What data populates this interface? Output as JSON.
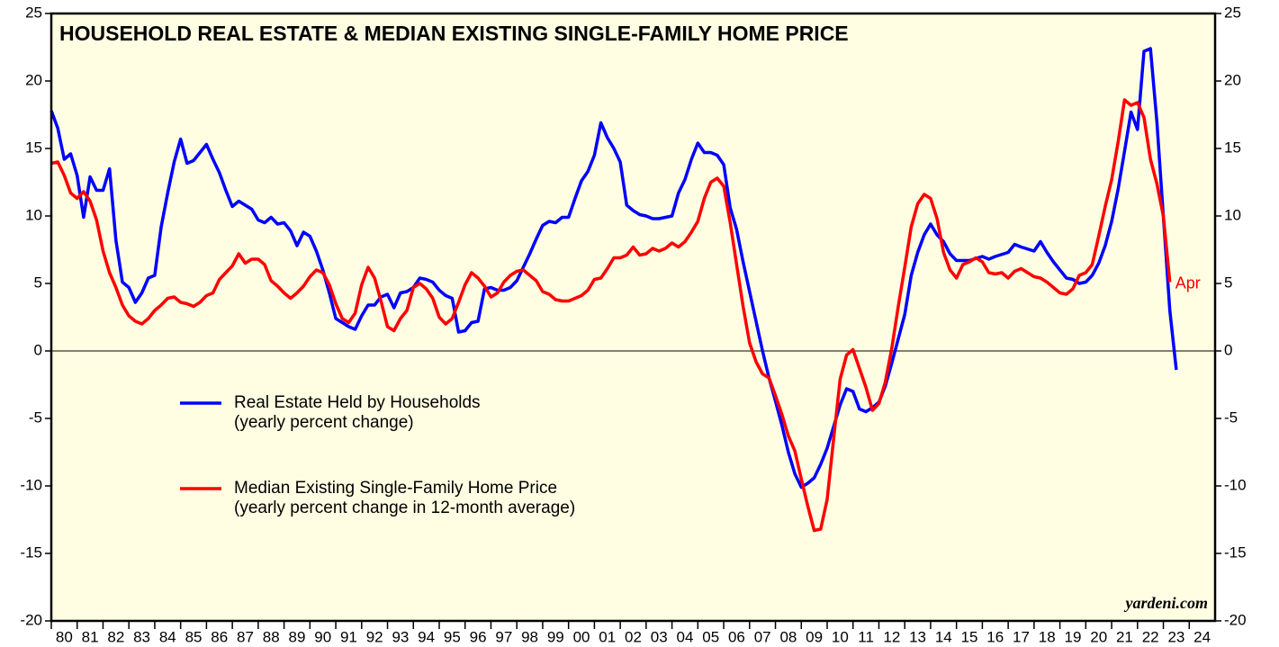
{
  "chart_data": {
    "type": "line",
    "title": "HOUSEHOLD REAL ESTATE & MEDIAN EXISTING SINGLE-FAMILY HOME PRICE",
    "source": "yardeni.com",
    "xlim": [
      1980,
      2025
    ],
    "ylim": [
      -20,
      25
    ],
    "yticks": [
      -20,
      -15,
      -10,
      -5,
      0,
      5,
      10,
      15,
      20,
      25
    ],
    "y2lim": [
      -20,
      25
    ],
    "y2ticks": [
      -20,
      -15,
      -10,
      -5,
      0,
      5,
      10,
      15,
      20,
      25
    ],
    "xticks": [
      {
        "value": 1980,
        "label": "80"
      },
      {
        "value": 1981,
        "label": "81"
      },
      {
        "value": 1982,
        "label": "82"
      },
      {
        "value": 1983,
        "label": "83"
      },
      {
        "value": 1984,
        "label": "84"
      },
      {
        "value": 1985,
        "label": "85"
      },
      {
        "value": 1986,
        "label": "86"
      },
      {
        "value": 1987,
        "label": "87"
      },
      {
        "value": 1988,
        "label": "88"
      },
      {
        "value": 1989,
        "label": "89"
      },
      {
        "value": 1990,
        "label": "90"
      },
      {
        "value": 1991,
        "label": "91"
      },
      {
        "value": 1992,
        "label": "92"
      },
      {
        "value": 1993,
        "label": "93"
      },
      {
        "value": 1994,
        "label": "94"
      },
      {
        "value": 1995,
        "label": "95"
      },
      {
        "value": 1996,
        "label": "96"
      },
      {
        "value": 1997,
        "label": "97"
      },
      {
        "value": 1998,
        "label": "98"
      },
      {
        "value": 1999,
        "label": "99"
      },
      {
        "value": 2000,
        "label": "00"
      },
      {
        "value": 2001,
        "label": "01"
      },
      {
        "value": 2002,
        "label": "02"
      },
      {
        "value": 2003,
        "label": "03"
      },
      {
        "value": 2004,
        "label": "04"
      },
      {
        "value": 2005,
        "label": "05"
      },
      {
        "value": 2006,
        "label": "06"
      },
      {
        "value": 2007,
        "label": "07"
      },
      {
        "value": 2008,
        "label": "08"
      },
      {
        "value": 2009,
        "label": "09"
      },
      {
        "value": 2010,
        "label": "10"
      },
      {
        "value": 2011,
        "label": "11"
      },
      {
        "value": 2012,
        "label": "12"
      },
      {
        "value": 2013,
        "label": "13"
      },
      {
        "value": 2014,
        "label": "14"
      },
      {
        "value": 2015,
        "label": "15"
      },
      {
        "value": 2016,
        "label": "16"
      },
      {
        "value": 2017,
        "label": "17"
      },
      {
        "value": 2018,
        "label": "18"
      },
      {
        "value": 2019,
        "label": "19"
      },
      {
        "value": 2020,
        "label": "20"
      },
      {
        "value": 2021,
        "label": "21"
      },
      {
        "value": 2022,
        "label": "22"
      },
      {
        "value": 2023,
        "label": "23"
      },
      {
        "value": 2024,
        "label": "24"
      }
    ],
    "background": "#fffee3",
    "series": [
      {
        "name": "Real Estate Held by Households",
        "legend_detail": "(yearly percent change)",
        "color": "#0000ff",
        "x": [
          1980,
          1980.25,
          1980.5,
          1980.75,
          1981,
          1981.25,
          1981.5,
          1981.75,
          1982,
          1982.25,
          1982.5,
          1982.75,
          1983,
          1983.25,
          1983.5,
          1983.75,
          1984,
          1984.25,
          1984.5,
          1984.75,
          1985,
          1985.25,
          1985.5,
          1986,
          1986.25,
          1986.5,
          1986.75,
          1987,
          1987.25,
          1987.5,
          1987.75,
          1988,
          1988.25,
          1988.5,
          1988.75,
          1989,
          1989.25,
          1989.5,
          1989.75,
          1990,
          1990.25,
          1990.5,
          1990.75,
          1991,
          1991.25,
          1991.5,
          1991.75,
          1992,
          1992.25,
          1992.5,
          1992.75,
          1993,
          1993.25,
          1993.5,
          1993.75,
          1994,
          1994.25,
          1994.5,
          1994.75,
          1995,
          1995.25,
          1995.5,
          1995.75,
          1996,
          1996.25,
          1996.5,
          1996.75,
          1997,
          1997.25,
          1997.5,
          1997.75,
          1998,
          1998.25,
          1998.5,
          1998.75,
          1999,
          1999.25,
          1999.5,
          1999.75,
          2000,
          2000.25,
          2000.5,
          2000.75,
          2001,
          2001.25,
          2001.5,
          2001.75,
          2002,
          2002.25,
          2002.5,
          2002.75,
          2003,
          2003.25,
          2003.5,
          2003.75,
          2004,
          2004.25,
          2004.5,
          2004.75,
          2005,
          2005.25,
          2005.5,
          2005.75,
          2006,
          2006.25,
          2006.5,
          2006.75,
          2007,
          2007.25,
          2007.5,
          2007.75,
          2008,
          2008.25,
          2008.5,
          2008.75,
          2009,
          2009.25,
          2009.5,
          2009.75,
          2010,
          2010.25,
          2010.5,
          2010.75,
          2011,
          2011.25,
          2011.5,
          2011.75,
          2012,
          2012.25,
          2012.5,
          2012.75,
          2013,
          2013.25,
          2013.5,
          2013.75,
          2014,
          2014.25,
          2014.5,
          2014.75,
          2015,
          2015.5,
          2016,
          2016.25,
          2016.5,
          2017,
          2017.25,
          2017.5,
          2018,
          2018.25,
          2018.5,
          2018.75,
          2019,
          2019.25,
          2019.5,
          2019.75,
          2020,
          2020.25,
          2020.5,
          2020.75,
          2021,
          2021.25,
          2021.5,
          2021.75,
          2022,
          2022.25,
          2022.5,
          2022.75,
          2023,
          2023.25,
          2023.5
        ],
        "values": [
          17.8,
          16.5,
          14.2,
          14.6,
          13,
          9.9,
          12.9,
          11.9,
          11.9,
          13.5,
          8.2,
          5.1,
          4.7,
          3.6,
          4.3,
          5.4,
          5.6,
          9.2,
          11.7,
          14,
          15.7,
          13.9,
          14.1,
          15.3,
          14.2,
          13.2,
          11.9,
          10.7,
          11.1,
          10.8,
          10.5,
          9.7,
          9.5,
          9.9,
          9.4,
          9.5,
          8.9,
          7.8,
          8.8,
          8.5,
          7.4,
          6,
          4.3,
          2.4,
          2.1,
          1.8,
          1.6,
          2.6,
          3.4,
          3.4,
          4,
          4.2,
          3.2,
          4.3,
          4.4,
          4.7,
          5.4,
          5.3,
          5.1,
          4.5,
          4.1,
          3.9,
          1.4,
          1.5,
          2.1,
          2.2,
          4.6,
          4.7,
          4.5,
          4.5,
          4.7,
          5.2,
          6.2,
          7.2,
          8.3,
          9.3,
          9.6,
          9.5,
          9.9,
          9.9,
          11.3,
          12.6,
          13.3,
          14.5,
          16.9,
          15.8,
          15,
          14,
          10.8,
          10.4,
          10.1,
          10,
          9.8,
          9.8,
          9.9,
          10,
          11.7,
          12.7,
          14.2,
          15.4,
          14.7,
          14.7,
          14.5,
          13.8,
          10.6,
          9,
          6.6,
          4.4,
          2.2,
          0,
          -2,
          -3.7,
          -5.5,
          -7.5,
          -9.1,
          -10.1,
          -9.8,
          -9.4,
          -8.4,
          -7.2,
          -5.6,
          -4,
          -2.8,
          -3,
          -4.3,
          -4.5,
          -4.2,
          -3.8,
          -2.6,
          -0.9,
          0.9,
          2.7,
          5.6,
          7.3,
          8.6,
          9.4,
          8.6,
          8.1,
          7.2,
          6.7,
          6.7,
          7.0,
          6.8,
          7.0,
          7.3,
          7.9,
          7.7,
          7.4,
          8.1,
          7.3,
          6.6,
          6,
          5.4,
          5.3,
          5,
          5.1,
          5.6,
          6.5,
          7.8,
          9.6,
          12,
          14.8,
          17.7,
          16.4,
          22.2,
          22.4,
          17,
          10,
          3,
          -1.4
        ]
      },
      {
        "name": "Median Existing Single-Family Home Price",
        "legend_detail": "(yearly percent change in 12-month average)",
        "color": "#ff0000",
        "end_label": "Apr",
        "x": [
          1980,
          1980.25,
          1980.5,
          1980.75,
          1981,
          1981.25,
          1981.5,
          1981.75,
          1982,
          1982.25,
          1982.5,
          1982.75,
          1983,
          1983.25,
          1983.5,
          1983.75,
          1984,
          1984.25,
          1984.5,
          1984.75,
          1985,
          1985.25,
          1985.5,
          1985.75,
          1986,
          1986.25,
          1986.5,
          1986.75,
          1987,
          1987.25,
          1987.5,
          1987.75,
          1988,
          1988.25,
          1988.5,
          1988.75,
          1989,
          1989.25,
          1989.5,
          1989.75,
          1990,
          1990.25,
          1990.5,
          1990.75,
          1991,
          1991.25,
          1991.5,
          1991.75,
          1992,
          1992.25,
          1992.5,
          1992.75,
          1993,
          1993.25,
          1993.5,
          1993.75,
          1994,
          1994.25,
          1994.5,
          1994.75,
          1995,
          1995.25,
          1995.5,
          1995.75,
          1996,
          1996.25,
          1996.5,
          1996.75,
          1997,
          1997.25,
          1997.5,
          1997.75,
          1998,
          1998.25,
          1998.5,
          1998.75,
          1999,
          1999.25,
          1999.5,
          1999.75,
          2000,
          2000.25,
          2000.5,
          2000.75,
          2001,
          2001.25,
          2001.5,
          2001.75,
          2002,
          2002.25,
          2002.5,
          2002.75,
          2003,
          2003.25,
          2003.5,
          2003.75,
          2004,
          2004.25,
          2004.5,
          2004.75,
          2005,
          2005.25,
          2005.5,
          2005.75,
          2006,
          2006.25,
          2006.5,
          2006.75,
          2007,
          2007.25,
          2007.5,
          2007.75,
          2008,
          2008.25,
          2008.5,
          2008.75,
          2009,
          2009.25,
          2009.5,
          2009.75,
          2010,
          2010.25,
          2010.5,
          2010.75,
          2011,
          2011.25,
          2011.5,
          2011.75,
          2012,
          2012.25,
          2012.5,
          2012.75,
          2013,
          2013.25,
          2013.5,
          2013.75,
          2014,
          2014.25,
          2014.5,
          2014.75,
          2015,
          2015.25,
          2015.5,
          2015.75,
          2016,
          2016.25,
          2016.5,
          2016.75,
          2017,
          2017.25,
          2017.5,
          2017.75,
          2018,
          2018.25,
          2018.5,
          2018.75,
          2019,
          2019.25,
          2019.5,
          2019.75,
          2020,
          2020.25,
          2020.5,
          2020.75,
          2021,
          2021.25,
          2021.5,
          2021.75,
          2022,
          2022.25,
          2022.5,
          2022.75,
          2023,
          2023.25
        ],
        "values": [
          13.9,
          14,
          13,
          11.7,
          11.3,
          11.8,
          11.1,
          9.7,
          7.4,
          5.8,
          4.7,
          3.4,
          2.6,
          2.2,
          2,
          2.4,
          3,
          3.4,
          3.9,
          4,
          3.6,
          3.5,
          3.3,
          3.6,
          4.1,
          4.3,
          5.3,
          5.8,
          6.3,
          7.2,
          6.5,
          6.8,
          6.8,
          6.4,
          5.2,
          4.8,
          4.3,
          3.9,
          4.3,
          4.8,
          5.5,
          6,
          5.8,
          4.9,
          3.5,
          2.4,
          2.1,
          2.8,
          4.9,
          6.2,
          5.4,
          3.7,
          1.8,
          1.5,
          2.4,
          3,
          4.7,
          5,
          4.6,
          3.9,
          2.5,
          2,
          2.4,
          3.6,
          4.9,
          5.8,
          5.4,
          4.8,
          4,
          4.3,
          5.1,
          5.6,
          5.9,
          6,
          5.6,
          5.2,
          4.4,
          4.2,
          3.8,
          3.7,
          3.7,
          3.9,
          4.1,
          4.5,
          5.3,
          5.4,
          6.1,
          6.9,
          6.9,
          7.1,
          7.7,
          7.1,
          7.2,
          7.6,
          7.4,
          7.6,
          8,
          7.7,
          8.1,
          8.8,
          9.6,
          11.3,
          12.5,
          12.8,
          12.2,
          9.5,
          6.4,
          3.3,
          0.6,
          -0.8,
          -1.7,
          -2,
          -3.3,
          -4.7,
          -6.3,
          -7.4,
          -9.5,
          -11.5,
          -13.3,
          -13.2,
          -11,
          -6.5,
          -2.1,
          -0.3,
          0.1,
          -1.3,
          -2.7,
          -4.4,
          -3.9,
          -2.3,
          0.2,
          3.3,
          6.2,
          9.2,
          10.9,
          11.6,
          11.3,
          9.8,
          7.3,
          6,
          5.4,
          6.4,
          6.6,
          6.9,
          6.6,
          5.8,
          5.7,
          5.8,
          5.4,
          5.9,
          6.1,
          5.8,
          5.5,
          5.4,
          5.1,
          4.7,
          4.3,
          4.2,
          4.6,
          5.6,
          5.8,
          6.4,
          8.5,
          10.7,
          12.7,
          15.5,
          18.6,
          18.2,
          18.4,
          17.3,
          14.2,
          12.4,
          10,
          5.1
        ]
      }
    ]
  }
}
